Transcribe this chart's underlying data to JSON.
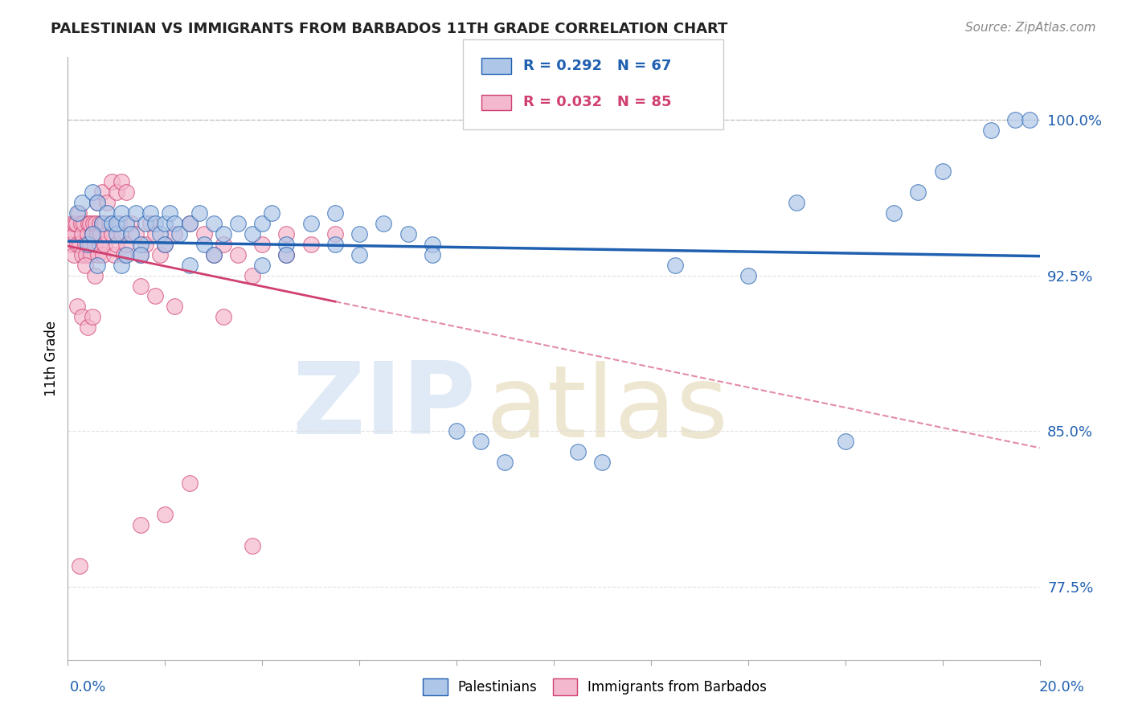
{
  "title": "PALESTINIAN VS IMMIGRANTS FROM BARBADOS 11TH GRADE CORRELATION CHART",
  "source": "Source: ZipAtlas.com",
  "ylabel": "11th Grade",
  "y_ticks": [
    77.5,
    85.0,
    92.5,
    100.0
  ],
  "y_tick_labels": [
    "77.5%",
    "85.0%",
    "92.5%",
    "100.0%"
  ],
  "xmin": 0.0,
  "xmax": 20.0,
  "ymin": 74.0,
  "ymax": 103.0,
  "blue_color": "#aec6e8",
  "pink_color": "#f4b8ce",
  "blue_line_color": "#2060b0",
  "pink_line_color": "#d04070",
  "blue_scatter_x": [
    0.2,
    0.3,
    0.5,
    0.6,
    0.7,
    0.8,
    0.9,
    1.0,
    1.0,
    1.1,
    1.2,
    1.3,
    1.4,
    1.5,
    1.6,
    1.7,
    1.8,
    1.9,
    2.0,
    2.1,
    2.2,
    2.3,
    2.5,
    2.7,
    2.8,
    3.0,
    3.2,
    3.5,
    3.8,
    4.0,
    4.2,
    4.5,
    5.0,
    5.5,
    6.0,
    6.5,
    7.0,
    7.5,
    8.0,
    9.0,
    10.5,
    11.0,
    12.5,
    14.0,
    15.0,
    16.0,
    17.0,
    17.5,
    18.0,
    19.0,
    19.5,
    19.8,
    0.4,
    0.5,
    0.6,
    1.1,
    1.2,
    1.5,
    2.0,
    2.5,
    3.0,
    4.0,
    4.5,
    5.5,
    6.0,
    7.5,
    8.5
  ],
  "blue_scatter_y": [
    95.5,
    96.0,
    96.5,
    96.0,
    95.0,
    95.5,
    95.0,
    94.5,
    95.0,
    95.5,
    95.0,
    94.5,
    95.5,
    94.0,
    95.0,
    95.5,
    95.0,
    94.5,
    95.0,
    95.5,
    95.0,
    94.5,
    95.0,
    95.5,
    94.0,
    95.0,
    94.5,
    95.0,
    94.5,
    95.0,
    95.5,
    94.0,
    95.0,
    95.5,
    94.5,
    95.0,
    94.5,
    94.0,
    85.0,
    83.5,
    84.0,
    83.5,
    93.0,
    92.5,
    96.0,
    84.5,
    95.5,
    96.5,
    97.5,
    99.5,
    100.0,
    100.0,
    94.0,
    94.5,
    93.0,
    93.0,
    93.5,
    93.5,
    94.0,
    93.0,
    93.5,
    93.0,
    93.5,
    94.0,
    93.5,
    93.5,
    84.5
  ],
  "pink_scatter_x": [
    0.05,
    0.08,
    0.1,
    0.12,
    0.15,
    0.15,
    0.18,
    0.2,
    0.22,
    0.25,
    0.28,
    0.3,
    0.3,
    0.32,
    0.35,
    0.38,
    0.4,
    0.42,
    0.45,
    0.45,
    0.48,
    0.5,
    0.52,
    0.55,
    0.58,
    0.6,
    0.62,
    0.65,
    0.65,
    0.68,
    0.7,
    0.72,
    0.75,
    0.75,
    0.8,
    0.85,
    0.9,
    0.95,
    1.0,
    1.05,
    1.1,
    1.15,
    1.2,
    1.3,
    1.4,
    1.5,
    1.6,
    1.7,
    1.8,
    1.9,
    2.0,
    2.2,
    2.5,
    2.8,
    3.0,
    3.2,
    3.5,
    4.0,
    4.5,
    4.5,
    5.0,
    5.5,
    3.8,
    0.6,
    0.7,
    0.8,
    0.9,
    1.0,
    1.1,
    1.2,
    0.35,
    0.55,
    1.5,
    1.8,
    2.2,
    3.2,
    0.2,
    0.3,
    0.4,
    0.5,
    0.25,
    1.5,
    2.0,
    2.5,
    3.8
  ],
  "pink_scatter_y": [
    94.5,
    94.0,
    95.0,
    93.5,
    94.5,
    95.0,
    95.0,
    94.0,
    95.5,
    94.0,
    95.0,
    93.5,
    94.5,
    95.0,
    94.0,
    93.5,
    94.5,
    95.0,
    94.0,
    95.0,
    93.5,
    94.5,
    95.0,
    94.0,
    95.0,
    94.5,
    93.5,
    94.0,
    95.0,
    94.5,
    95.0,
    93.5,
    94.0,
    95.0,
    94.5,
    95.0,
    94.5,
    93.5,
    94.0,
    95.0,
    94.5,
    93.5,
    94.0,
    95.0,
    94.5,
    93.5,
    94.0,
    95.0,
    94.5,
    93.5,
    94.0,
    94.5,
    95.0,
    94.5,
    93.5,
    94.0,
    93.5,
    94.0,
    94.5,
    93.5,
    94.0,
    94.5,
    92.5,
    96.0,
    96.5,
    96.0,
    97.0,
    96.5,
    97.0,
    96.5,
    93.0,
    92.5,
    92.0,
    91.5,
    91.0,
    90.5,
    91.0,
    90.5,
    90.0,
    90.5,
    78.5,
    80.5,
    81.0,
    82.5,
    79.5
  ]
}
